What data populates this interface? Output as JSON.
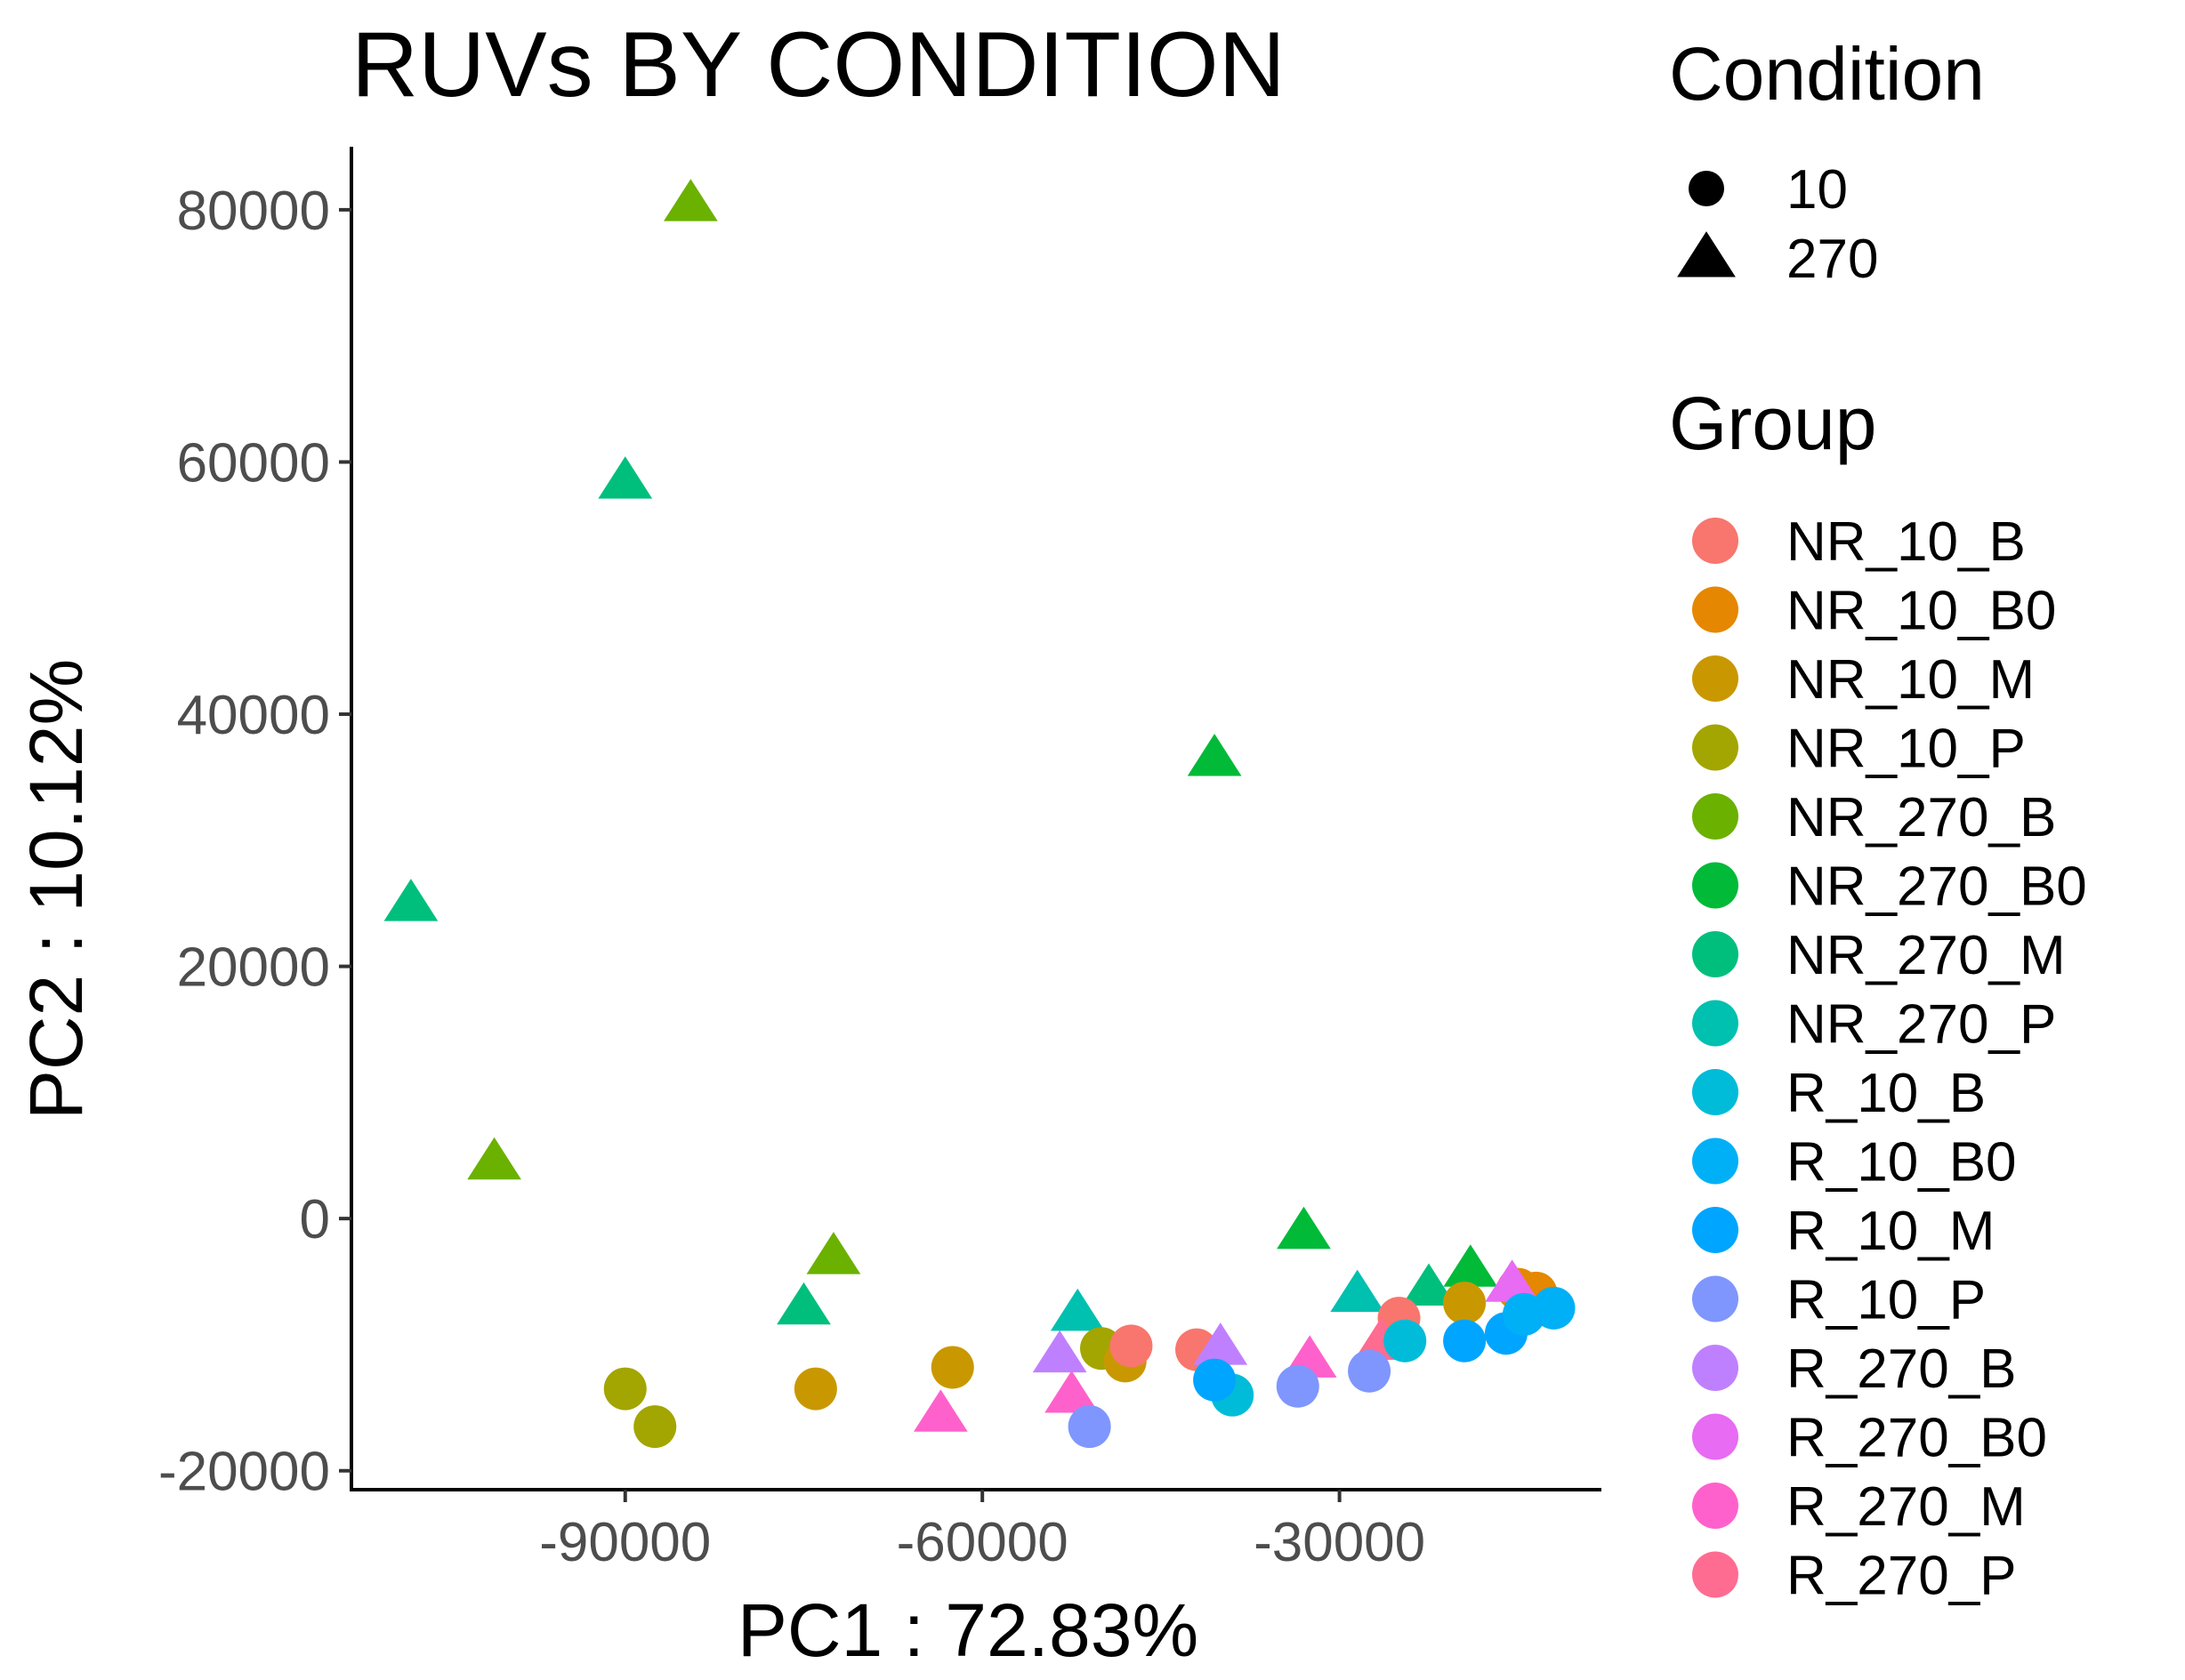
{
  "chart_data": {
    "type": "scatter",
    "title": "RUVs BY CONDITION",
    "xlabel": "PC1 : 72.83%",
    "ylabel": "PC2 : 10.12%",
    "xlim": [
      -113000,
      -8000
    ],
    "ylim": [
      -21500,
      85000
    ],
    "xticks": [
      -90000,
      -60000,
      -30000
    ],
    "xtick_labels": [
      "-90000",
      "-60000",
      "-30000"
    ],
    "yticks": [
      -20000,
      0,
      20000,
      40000,
      60000,
      80000
    ],
    "ytick_labels": [
      "-20000",
      "0",
      "20000",
      "40000",
      "60000",
      "80000"
    ],
    "grid": false,
    "legend_position": "right",
    "shape_legend": {
      "title": "Condition",
      "items": [
        {
          "label": "10",
          "shape": "circle"
        },
        {
          "label": "270",
          "shape": "triangle"
        }
      ]
    },
    "color_legend": {
      "title": "Group",
      "items": [
        {
          "label": "NR_10_B",
          "color": "#F8766D"
        },
        {
          "label": "NR_10_B0",
          "color": "#E58700"
        },
        {
          "label": "NR_10_M",
          "color": "#C99800"
        },
        {
          "label": "NR_10_P",
          "color": "#A3A500"
        },
        {
          "label": "NR_270_B",
          "color": "#6BB100"
        },
        {
          "label": "NR_270_B0",
          "color": "#00BA38"
        },
        {
          "label": "NR_270_M",
          "color": "#00BF7D"
        },
        {
          "label": "NR_270_P",
          "color": "#00C0AF"
        },
        {
          "label": "R_10_B",
          "color": "#00BCD8"
        },
        {
          "label": "R_10_B0",
          "color": "#00B0F6"
        },
        {
          "label": "R_10_M",
          "color": "#00A5FF"
        },
        {
          "label": "R_10_P",
          "color": "#7F96FF"
        },
        {
          "label": "R_270_B",
          "color": "#BF80FF"
        },
        {
          "label": "R_270_B0",
          "color": "#E76BF3"
        },
        {
          "label": "R_270_M",
          "color": "#FF61CC"
        },
        {
          "label": "R_270_P",
          "color": "#FF6C91"
        }
      ]
    },
    "points": [
      {
        "group": "NR_270_B",
        "condition": "270",
        "x": -84500,
        "y": 80500
      },
      {
        "group": "NR_270_M",
        "condition": "270",
        "x": -90000,
        "y": 58500
      },
      {
        "group": "NR_270_B0",
        "condition": "270",
        "x": -40500,
        "y": 36500
      },
      {
        "group": "NR_270_M",
        "condition": "270",
        "x": -108000,
        "y": 25000
      },
      {
        "group": "NR_270_B",
        "condition": "270",
        "x": -101000,
        "y": 4500
      },
      {
        "group": "NR_270_B",
        "condition": "270",
        "x": -72500,
        "y": -3000
      },
      {
        "group": "NR_270_M",
        "condition": "270",
        "x": -75000,
        "y": -7000
      },
      {
        "group": "NR_270_P",
        "condition": "270",
        "x": -52000,
        "y": -7500
      },
      {
        "group": "NR_270_B0",
        "condition": "270",
        "x": -33000,
        "y": -1000
      },
      {
        "group": "NR_270_P",
        "condition": "270",
        "x": -28500,
        "y": -6000
      },
      {
        "group": "NR_270_M",
        "condition": "270",
        "x": -22500,
        "y": -5500
      },
      {
        "group": "NR_270_B0",
        "condition": "270",
        "x": -19000,
        "y": -4000
      },
      {
        "group": "NR_10_P",
        "condition": "10",
        "x": -90000,
        "y": -13500
      },
      {
        "group": "NR_10_P",
        "condition": "10",
        "x": -87500,
        "y": -16500
      },
      {
        "group": "NR_10_M",
        "condition": "10",
        "x": -74000,
        "y": -13500
      },
      {
        "group": "NR_10_M",
        "condition": "10",
        "x": -62500,
        "y": -11800
      },
      {
        "group": "NR_10_P",
        "condition": "10",
        "x": -50000,
        "y": -10300
      },
      {
        "group": "NR_10_M",
        "condition": "10",
        "x": -48000,
        "y": -11300
      },
      {
        "group": "NR_10_B",
        "condition": "10",
        "x": -47500,
        "y": -10100
      },
      {
        "group": "NR_10_B",
        "condition": "10",
        "x": -42000,
        "y": -10400
      },
      {
        "group": "NR_10_B",
        "condition": "10",
        "x": -25000,
        "y": -7900
      },
      {
        "group": "NR_10_M",
        "condition": "10",
        "x": -19500,
        "y": -6700
      },
      {
        "group": "NR_10_B0",
        "condition": "10",
        "x": -15000,
        "y": -5600
      },
      {
        "group": "NR_10_B0",
        "condition": "10",
        "x": -13500,
        "y": -5900
      },
      {
        "group": "R_270_M",
        "condition": "270",
        "x": -63500,
        "y": -15500
      },
      {
        "group": "R_270_M",
        "condition": "270",
        "x": -52500,
        "y": -14000
      },
      {
        "group": "R_270_B",
        "condition": "270",
        "x": -53500,
        "y": -10800
      },
      {
        "group": "R_270_B",
        "condition": "270",
        "x": -40000,
        "y": -10200
      },
      {
        "group": "R_270_M",
        "condition": "270",
        "x": -32500,
        "y": -11200
      },
      {
        "group": "R_270_P",
        "condition": "270",
        "x": -26500,
        "y": -9800
      },
      {
        "group": "R_270_B0",
        "condition": "270",
        "x": -15500,
        "y": -5200
      },
      {
        "group": "R_10_P",
        "condition": "10",
        "x": -51000,
        "y": -16500
      },
      {
        "group": "R_10_B",
        "condition": "10",
        "x": -39000,
        "y": -14000
      },
      {
        "group": "R_10_M",
        "condition": "10",
        "x": -40500,
        "y": -12800
      },
      {
        "group": "R_10_P",
        "condition": "10",
        "x": -33500,
        "y": -13300
      },
      {
        "group": "R_10_P",
        "condition": "10",
        "x": -27500,
        "y": -12100
      },
      {
        "group": "R_10_B",
        "condition": "10",
        "x": -24500,
        "y": -9700
      },
      {
        "group": "R_10_M",
        "condition": "10",
        "x": -19500,
        "y": -9700
      },
      {
        "group": "R_10_M",
        "condition": "10",
        "x": -16000,
        "y": -9100
      },
      {
        "group": "R_10_B0",
        "condition": "10",
        "x": -14500,
        "y": -7600
      },
      {
        "group": "R_10_B0",
        "condition": "10",
        "x": -12000,
        "y": -7100
      }
    ]
  }
}
